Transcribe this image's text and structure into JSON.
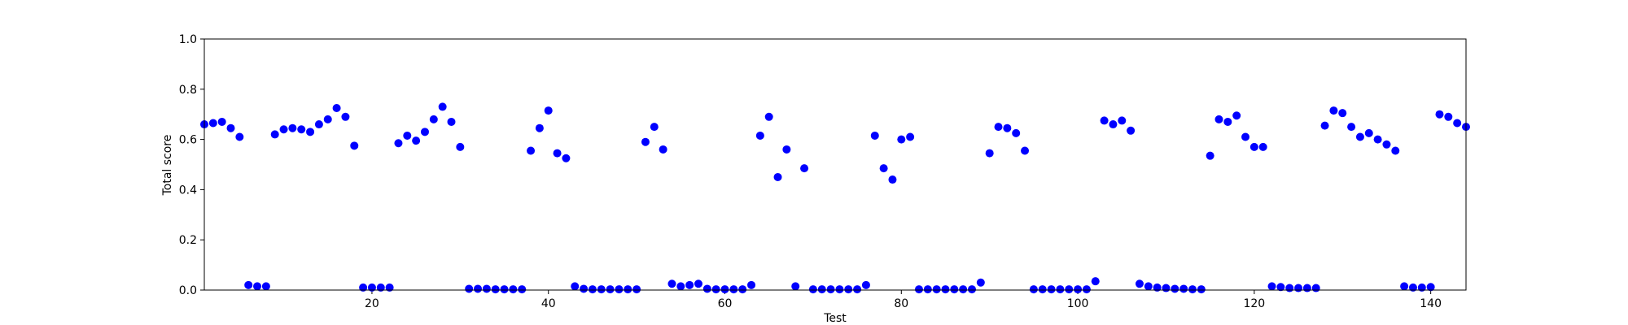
{
  "chart_data": {
    "type": "scatter",
    "xlabel": "Test",
    "ylabel": "Total score",
    "xlim": [
      1,
      144
    ],
    "ylim": [
      0.0,
      1.0
    ],
    "xticks": [
      20,
      40,
      60,
      80,
      100,
      120,
      140
    ],
    "yticks": [
      "0.0",
      "0.2",
      "0.4",
      "0.6",
      "0.8",
      "1.0"
    ],
    "grid": false,
    "marker_color": "#0000ff",
    "series": [
      {
        "x": [
          1,
          2,
          3,
          4,
          5,
          6,
          7,
          8,
          9,
          10,
          11,
          12,
          13,
          14,
          15,
          16,
          17,
          18,
          19,
          20,
          21,
          22,
          23,
          24,
          25,
          26,
          27,
          28,
          29,
          30,
          31,
          32,
          33,
          34,
          35,
          36,
          37,
          38,
          39,
          40,
          41,
          42,
          43,
          44,
          45,
          46,
          47,
          48,
          49,
          50,
          51,
          52,
          53,
          54,
          55,
          56,
          57,
          58,
          59,
          60,
          61,
          62,
          63,
          64,
          65,
          66,
          67,
          68,
          69,
          70,
          71,
          72,
          73,
          74,
          75,
          76,
          77,
          78,
          79,
          80,
          81,
          82,
          83,
          84,
          85,
          86,
          87,
          88,
          89,
          90,
          91,
          92,
          93,
          94,
          95,
          96,
          97,
          98,
          99,
          100,
          101,
          102,
          103,
          104,
          105,
          106,
          107,
          108,
          109,
          110,
          111,
          112,
          113,
          114,
          115,
          116,
          117,
          118,
          119,
          120,
          121,
          122,
          123,
          124,
          125,
          126,
          127,
          128,
          129,
          130,
          131,
          132,
          133,
          134,
          135,
          136,
          137,
          138,
          139,
          140,
          141,
          142,
          143,
          144
        ],
        "y": [
          0.66,
          0.665,
          0.67,
          0.645,
          0.61,
          0.02,
          0.015,
          0.015,
          0.62,
          0.64,
          0.645,
          0.64,
          0.63,
          0.66,
          0.68,
          0.725,
          0.69,
          0.575,
          0.01,
          0.01,
          0.01,
          0.01,
          0.585,
          0.615,
          0.595,
          0.63,
          0.68,
          0.73,
          0.67,
          0.57,
          0.005,
          0.005,
          0.005,
          0.003,
          0.003,
          0.003,
          0.003,
          0.555,
          0.645,
          0.715,
          0.545,
          0.525,
          0.015,
          0.005,
          0.003,
          0.003,
          0.003,
          0.003,
          0.003,
          0.003,
          0.59,
          0.65,
          0.56,
          0.025,
          0.015,
          0.02,
          0.025,
          0.005,
          0.003,
          0.003,
          0.003,
          0.003,
          0.02,
          0.615,
          0.69,
          0.45,
          0.56,
          0.015,
          0.485,
          0.003,
          0.003,
          0.003,
          0.003,
          0.003,
          0.003,
          0.02,
          0.615,
          0.485,
          0.44,
          0.6,
          0.61,
          0.003,
          0.003,
          0.003,
          0.003,
          0.003,
          0.003,
          0.003,
          0.03,
          0.545,
          0.65,
          0.645,
          0.625,
          0.555,
          0.003,
          0.003,
          0.003,
          0.003,
          0.003,
          0.003,
          0.003,
          0.035,
          0.675,
          0.66,
          0.675,
          0.635,
          0.025,
          0.015,
          0.01,
          0.008,
          0.005,
          0.005,
          0.003,
          0.003,
          0.535,
          0.68,
          0.67,
          0.695,
          0.61,
          0.57,
          0.57,
          0.015,
          0.012,
          0.008,
          0.008,
          0.008,
          0.008,
          0.655,
          0.715,
          0.705,
          0.65,
          0.61,
          0.625,
          0.6,
          0.58,
          0.555,
          0.015,
          0.01,
          0.01,
          0.012,
          0.7,
          0.69,
          0.665,
          0.65
        ]
      }
    ]
  }
}
